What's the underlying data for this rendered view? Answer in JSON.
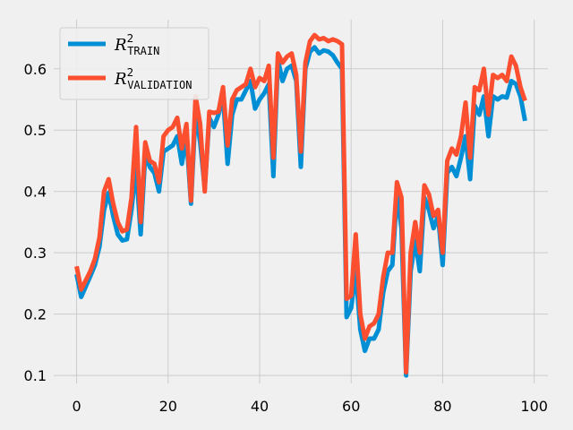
{
  "chart_data": {
    "type": "line",
    "title": "",
    "xlabel": "",
    "ylabel": "",
    "xlim": [
      -5,
      103
    ],
    "ylim": [
      0.087,
      0.68
    ],
    "xticks": [
      0,
      20,
      40,
      60,
      80,
      100
    ],
    "yticks": [
      0.1,
      0.2,
      0.3,
      0.4,
      0.5,
      0.6
    ],
    "xtick_labels": [
      "0",
      "20",
      "40",
      "60",
      "80",
      "100"
    ],
    "ytick_labels": [
      "0.1",
      "0.2",
      "0.3",
      "0.4",
      "0.5",
      "0.6"
    ],
    "grid": true,
    "legend_position": "top-left",
    "x": [
      0,
      1,
      2,
      3,
      4,
      5,
      6,
      7,
      8,
      9,
      10,
      11,
      12,
      13,
      14,
      15,
      16,
      17,
      18,
      19,
      20,
      21,
      22,
      23,
      24,
      25,
      26,
      27,
      28,
      29,
      30,
      31,
      32,
      33,
      34,
      35,
      36,
      37,
      38,
      39,
      40,
      41,
      42,
      43,
      44,
      45,
      46,
      47,
      48,
      49,
      50,
      51,
      52,
      53,
      54,
      55,
      56,
      57,
      58,
      59,
      60,
      61,
      62,
      63,
      64,
      65,
      66,
      67,
      68,
      69,
      70,
      71,
      72,
      73,
      74,
      75,
      76,
      77,
      78,
      79,
      80,
      81,
      82,
      83,
      84,
      85,
      86,
      87,
      88,
      89,
      90,
      91,
      92,
      93,
      94,
      95,
      96,
      97,
      98
    ],
    "series": [
      {
        "name": "R²TRAIN",
        "color": "#008fd5",
        "values": [
          0.265,
          0.228,
          0.245,
          0.262,
          0.28,
          0.31,
          0.37,
          0.398,
          0.36,
          0.33,
          0.32,
          0.322,
          0.37,
          0.44,
          0.33,
          0.46,
          0.44,
          0.43,
          0.4,
          0.465,
          0.47,
          0.475,
          0.49,
          0.445,
          0.49,
          0.38,
          0.53,
          0.48,
          0.405,
          0.52,
          0.505,
          0.525,
          0.555,
          0.445,
          0.525,
          0.55,
          0.55,
          0.565,
          0.58,
          0.535,
          0.55,
          0.56,
          0.575,
          0.425,
          0.615,
          0.58,
          0.6,
          0.605,
          0.58,
          0.44,
          0.6,
          0.628,
          0.635,
          0.625,
          0.63,
          0.628,
          0.622,
          0.61,
          0.6,
          0.195,
          0.21,
          0.27,
          0.175,
          0.14,
          0.16,
          0.16,
          0.175,
          0.235,
          0.27,
          0.28,
          0.395,
          0.34,
          0.1,
          0.27,
          0.32,
          0.27,
          0.39,
          0.37,
          0.34,
          0.36,
          0.28,
          0.43,
          0.44,
          0.425,
          0.455,
          0.49,
          0.42,
          0.54,
          0.525,
          0.555,
          0.49,
          0.555,
          0.55,
          0.555,
          0.553,
          0.58,
          0.575,
          0.555,
          0.515
        ]
      },
      {
        "name": "R²VALIDATION",
        "color": "#fc4f30",
        "values": [
          0.278,
          0.24,
          0.255,
          0.27,
          0.29,
          0.325,
          0.4,
          0.42,
          0.38,
          0.35,
          0.335,
          0.338,
          0.39,
          0.505,
          0.35,
          0.48,
          0.45,
          0.445,
          0.415,
          0.49,
          0.5,
          0.505,
          0.52,
          0.47,
          0.51,
          0.385,
          0.555,
          0.51,
          0.4,
          0.53,
          0.528,
          0.53,
          0.57,
          0.475,
          0.55,
          0.565,
          0.57,
          0.575,
          0.6,
          0.57,
          0.585,
          0.58,
          0.605,
          0.455,
          0.625,
          0.61,
          0.62,
          0.625,
          0.59,
          0.465,
          0.61,
          0.645,
          0.655,
          0.648,
          0.65,
          0.645,
          0.648,
          0.645,
          0.64,
          0.225,
          0.23,
          0.33,
          0.2,
          0.16,
          0.18,
          0.185,
          0.2,
          0.26,
          0.3,
          0.3,
          0.415,
          0.39,
          0.105,
          0.3,
          0.35,
          0.3,
          0.41,
          0.395,
          0.36,
          0.37,
          0.3,
          0.45,
          0.47,
          0.46,
          0.49,
          0.545,
          0.455,
          0.57,
          0.565,
          0.6,
          0.525,
          0.59,
          0.585,
          0.59,
          0.58,
          0.62,
          0.605,
          0.57,
          0.548
        ]
      }
    ]
  },
  "legend": {
    "entries": [
      {
        "symbol": "R",
        "sup": "2",
        "sub": "TRAIN",
        "color": "#008fd5"
      },
      {
        "symbol": "R",
        "sup": "2",
        "sub": "VALIDATION",
        "color": "#fc4f30"
      }
    ]
  },
  "colors": {
    "background": "#f0f0f0",
    "grid": "#cbcbcb"
  }
}
